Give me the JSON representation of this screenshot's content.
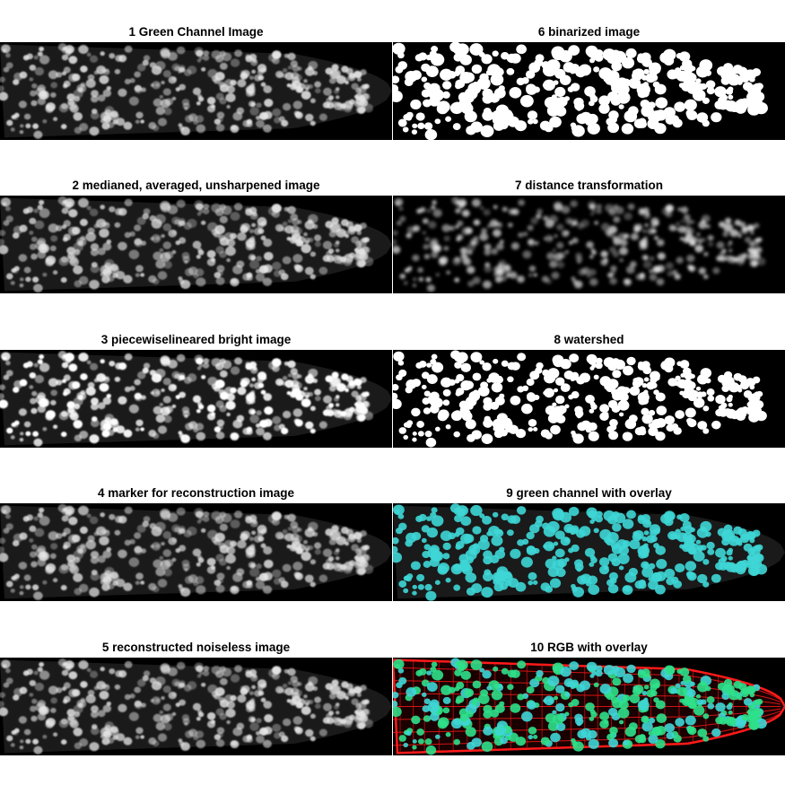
{
  "panels": [
    {
      "label": "1 Green Channel Image",
      "kind": "gray"
    },
    {
      "label": "2 medianed, averaged, unsharpened image",
      "kind": "gray-smooth"
    },
    {
      "label": "3 piecewiselineared bright image",
      "kind": "gray-bright"
    },
    {
      "label": "4 marker for reconstruction image",
      "kind": "gray-smooth"
    },
    {
      "label": "5 reconstructed noiseless image",
      "kind": "gray"
    },
    {
      "label": "6 binarized image",
      "kind": "binary"
    },
    {
      "label": "7 distance transformation",
      "kind": "distance"
    },
    {
      "label": "8 watershed",
      "kind": "watershed"
    },
    {
      "label": "9 green channel with overlay",
      "kind": "overlay-cyan"
    },
    {
      "label": "10 RGB with overlay",
      "kind": "overlay-rgb"
    }
  ],
  "colors": {
    "background": "#000000",
    "nuclei_gray": "#e6e6e6",
    "binary": "#ffffff",
    "overlay_cyan": "#3fd6d6",
    "overlay_green": "#2fe08a",
    "membrane_red": "#ff1a1a"
  }
}
